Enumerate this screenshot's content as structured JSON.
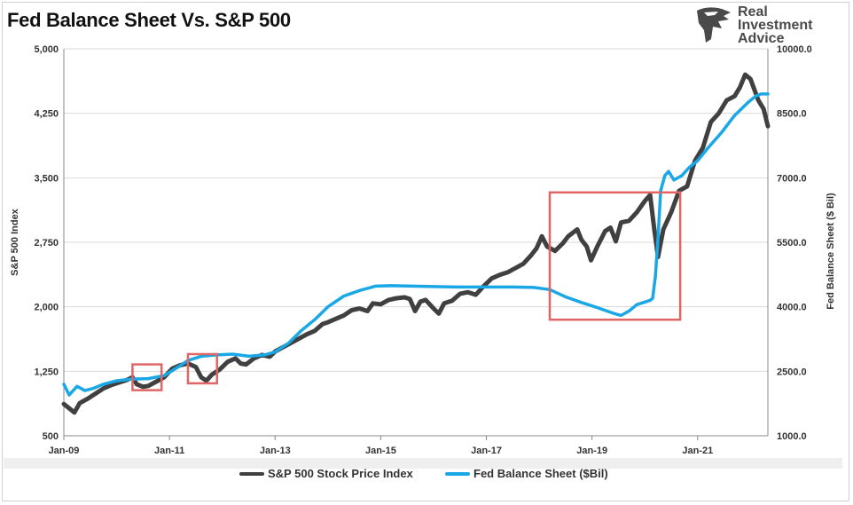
{
  "title": "Fed Balance Sheet Vs. S&P 500",
  "logo": {
    "line1": "Real",
    "line2": "Investment",
    "line3": "Advice"
  },
  "colors": {
    "sp500": "#404040",
    "fed": "#1aa7e6",
    "box": "#e06666",
    "grid": "#d9d9d9"
  },
  "chart_data": {
    "type": "line",
    "title": "Fed Balance Sheet Vs. S&P 500",
    "xlabel": "",
    "ylabel_left": "S&P 500 Index",
    "ylabel_right": "Fed Balance Sheet ($ Bil)",
    "x_range": [
      2009.0,
      2022.33
    ],
    "ylim_left": [
      500,
      5000
    ],
    "ylim_right": [
      1000,
      10000
    ],
    "x_ticks": [
      {
        "x": 2009,
        "label": "Jan-09"
      },
      {
        "x": 2011,
        "label": "Jan-11"
      },
      {
        "x": 2013,
        "label": "Jan-13"
      },
      {
        "x": 2015,
        "label": "Jan-15"
      },
      {
        "x": 2017,
        "label": "Jan-17"
      },
      {
        "x": 2019,
        "label": "Jan-19"
      },
      {
        "x": 2021,
        "label": "Jan-21"
      }
    ],
    "y_ticks_left": [
      "500",
      "1,250",
      "2,000",
      "2,750",
      "3,500",
      "4,250",
      "5,000"
    ],
    "y_tick_values_left": [
      500,
      1250,
      2000,
      2750,
      3500,
      4250,
      5000
    ],
    "y_ticks_right": [
      "1000.0",
      "2500.0",
      "4000.0",
      "5500.0",
      "7000.0",
      "8500.0",
      "10000.0"
    ],
    "y_tick_values_right": [
      1000,
      2500,
      4000,
      5500,
      7000,
      8500,
      10000
    ],
    "grid": true,
    "legend_position": "bottom",
    "series": [
      {
        "name": "S&P 500 Stock Price Index",
        "axis": "left",
        "color": "#404040",
        "points": [
          [
            2009.0,
            870
          ],
          [
            2009.1,
            820
          ],
          [
            2009.2,
            770
          ],
          [
            2009.3,
            880
          ],
          [
            2009.45,
            930
          ],
          [
            2009.6,
            990
          ],
          [
            2009.75,
            1050
          ],
          [
            2009.9,
            1090
          ],
          [
            2010.05,
            1120
          ],
          [
            2010.2,
            1150
          ],
          [
            2010.3,
            1180
          ],
          [
            2010.38,
            1100
          ],
          [
            2010.5,
            1070
          ],
          [
            2010.6,
            1080
          ],
          [
            2010.75,
            1130
          ],
          [
            2010.9,
            1180
          ],
          [
            2011.05,
            1280
          ],
          [
            2011.2,
            1320
          ],
          [
            2011.35,
            1340
          ],
          [
            2011.5,
            1300
          ],
          [
            2011.6,
            1180
          ],
          [
            2011.7,
            1140
          ],
          [
            2011.8,
            1210
          ],
          [
            2011.95,
            1270
          ],
          [
            2012.1,
            1360
          ],
          [
            2012.25,
            1400
          ],
          [
            2012.35,
            1340
          ],
          [
            2012.45,
            1330
          ],
          [
            2012.6,
            1400
          ],
          [
            2012.75,
            1440
          ],
          [
            2012.9,
            1420
          ],
          [
            2013.0,
            1480
          ],
          [
            2013.15,
            1530
          ],
          [
            2013.3,
            1580
          ],
          [
            2013.45,
            1630
          ],
          [
            2013.6,
            1680
          ],
          [
            2013.75,
            1720
          ],
          [
            2013.9,
            1800
          ],
          [
            2014.0,
            1820
          ],
          [
            2014.15,
            1860
          ],
          [
            2014.3,
            1900
          ],
          [
            2014.45,
            1960
          ],
          [
            2014.6,
            1980
          ],
          [
            2014.75,
            1950
          ],
          [
            2014.85,
            2040
          ],
          [
            2015.0,
            2030
          ],
          [
            2015.15,
            2080
          ],
          [
            2015.3,
            2100
          ],
          [
            2015.45,
            2110
          ],
          [
            2015.55,
            2090
          ],
          [
            2015.65,
            1950
          ],
          [
            2015.75,
            2060
          ],
          [
            2015.85,
            2080
          ],
          [
            2016.0,
            1980
          ],
          [
            2016.1,
            1920
          ],
          [
            2016.2,
            2040
          ],
          [
            2016.35,
            2070
          ],
          [
            2016.5,
            2150
          ],
          [
            2016.65,
            2170
          ],
          [
            2016.8,
            2140
          ],
          [
            2016.95,
            2240
          ],
          [
            2017.1,
            2330
          ],
          [
            2017.25,
            2370
          ],
          [
            2017.4,
            2400
          ],
          [
            2017.55,
            2450
          ],
          [
            2017.7,
            2500
          ],
          [
            2017.85,
            2600
          ],
          [
            2017.95,
            2680
          ],
          [
            2018.05,
            2820
          ],
          [
            2018.15,
            2700
          ],
          [
            2018.3,
            2650
          ],
          [
            2018.45,
            2740
          ],
          [
            2018.55,
            2820
          ],
          [
            2018.72,
            2900
          ],
          [
            2018.8,
            2780
          ],
          [
            2018.9,
            2700
          ],
          [
            2018.98,
            2540
          ],
          [
            2019.1,
            2700
          ],
          [
            2019.25,
            2880
          ],
          [
            2019.35,
            2920
          ],
          [
            2019.45,
            2760
          ],
          [
            2019.55,
            2980
          ],
          [
            2019.7,
            3000
          ],
          [
            2019.85,
            3100
          ],
          [
            2020.0,
            3230
          ],
          [
            2020.1,
            3300
          ],
          [
            2020.18,
            2900
          ],
          [
            2020.25,
            2580
          ],
          [
            2020.35,
            2900
          ],
          [
            2020.5,
            3100
          ],
          [
            2020.65,
            3350
          ],
          [
            2020.8,
            3400
          ],
          [
            2020.95,
            3700
          ],
          [
            2021.1,
            3850
          ],
          [
            2021.25,
            4150
          ],
          [
            2021.4,
            4250
          ],
          [
            2021.55,
            4400
          ],
          [
            2021.7,
            4450
          ],
          [
            2021.8,
            4550
          ],
          [
            2021.9,
            4700
          ],
          [
            2022.0,
            4650
          ],
          [
            2022.15,
            4400
          ],
          [
            2022.25,
            4300
          ],
          [
            2022.33,
            4100
          ]
        ]
      },
      {
        "name": "Fed Balance Sheet ($Bil)",
        "axis": "right",
        "color": "#1aa7e6",
        "points": [
          [
            2009.0,
            2200
          ],
          [
            2009.1,
            1950
          ],
          [
            2009.25,
            2150
          ],
          [
            2009.4,
            2050
          ],
          [
            2009.55,
            2100
          ],
          [
            2009.75,
            2200
          ],
          [
            2010.0,
            2280
          ],
          [
            2010.3,
            2320
          ],
          [
            2010.6,
            2330
          ],
          [
            2010.9,
            2400
          ],
          [
            2011.1,
            2550
          ],
          [
            2011.35,
            2750
          ],
          [
            2011.6,
            2850
          ],
          [
            2011.9,
            2880
          ],
          [
            2012.2,
            2900
          ],
          [
            2012.5,
            2850
          ],
          [
            2012.8,
            2880
          ],
          [
            2013.0,
            2950
          ],
          [
            2013.25,
            3150
          ],
          [
            2013.5,
            3450
          ],
          [
            2013.75,
            3700
          ],
          [
            2014.0,
            4000
          ],
          [
            2014.3,
            4250
          ],
          [
            2014.6,
            4380
          ],
          [
            2014.9,
            4480
          ],
          [
            2015.2,
            4490
          ],
          [
            2015.6,
            4480
          ],
          [
            2016.0,
            4470
          ],
          [
            2016.5,
            4460
          ],
          [
            2017.0,
            4460
          ],
          [
            2017.5,
            4460
          ],
          [
            2017.9,
            4450
          ],
          [
            2018.2,
            4400
          ],
          [
            2018.5,
            4230
          ],
          [
            2018.8,
            4100
          ],
          [
            2019.1,
            3980
          ],
          [
            2019.4,
            3850
          ],
          [
            2019.55,
            3800
          ],
          [
            2019.7,
            3900
          ],
          [
            2019.85,
            4050
          ],
          [
            2020.1,
            4150
          ],
          [
            2020.15,
            4200
          ],
          [
            2020.2,
            4700
          ],
          [
            2020.25,
            5600
          ],
          [
            2020.3,
            6700
          ],
          [
            2020.38,
            7050
          ],
          [
            2020.45,
            7150
          ],
          [
            2020.55,
            6950
          ],
          [
            2020.7,
            7050
          ],
          [
            2020.85,
            7250
          ],
          [
            2021.0,
            7400
          ],
          [
            2021.2,
            7700
          ],
          [
            2021.45,
            8050
          ],
          [
            2021.7,
            8450
          ],
          [
            2021.95,
            8750
          ],
          [
            2022.1,
            8900
          ],
          [
            2022.2,
            8950
          ],
          [
            2022.33,
            8950
          ]
        ]
      }
    ],
    "annotations": [
      {
        "type": "box",
        "x0": 2010.3,
        "x1": 2010.85,
        "y0": 1030,
        "y1": 1330,
        "axis": "left"
      },
      {
        "type": "box",
        "x0": 2011.35,
        "x1": 2011.9,
        "y0": 1110,
        "y1": 1450,
        "axis": "left"
      },
      {
        "type": "box",
        "x0": 2018.2,
        "x1": 2020.67,
        "y0": 1850,
        "y1": 3330,
        "axis": "left"
      }
    ]
  }
}
